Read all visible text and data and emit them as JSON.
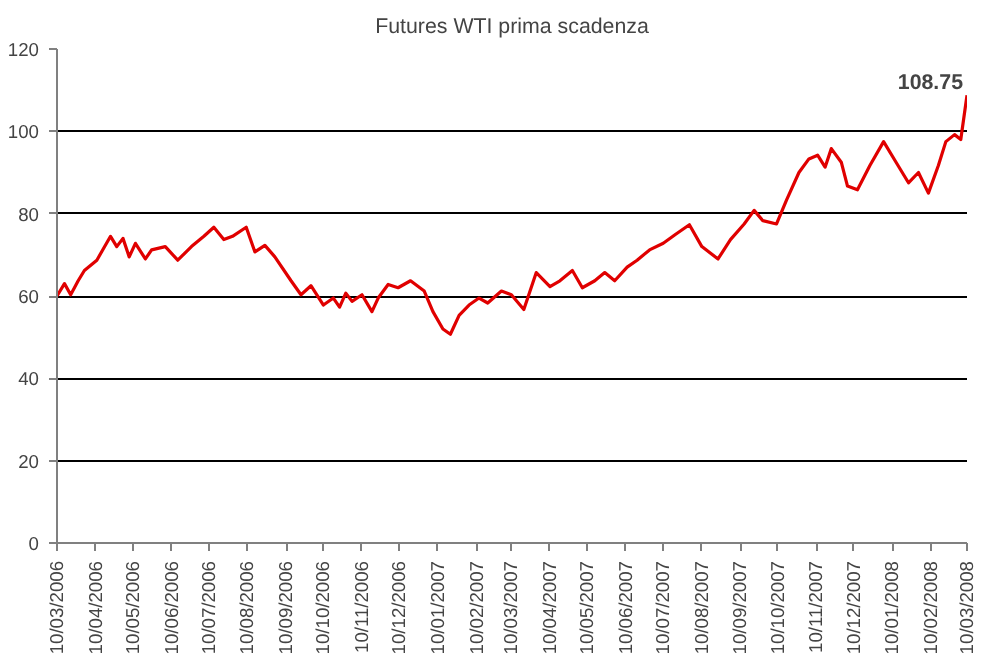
{
  "chart_data": {
    "type": "line",
    "title": "Futures WTI prima scadenza",
    "x": [
      "2006-03-10",
      "2006-03-16",
      "2006-03-21",
      "2006-03-27",
      "2006-04-01",
      "2006-04-11",
      "2006-04-22",
      "2006-04-27",
      "2006-05-02",
      "2006-05-07",
      "2006-05-12",
      "2006-05-20",
      "2006-05-25",
      "2006-06-05",
      "2006-06-15",
      "2006-06-26",
      "2006-07-06",
      "2006-07-14",
      "2006-07-22",
      "2006-07-29",
      "2006-08-09",
      "2006-08-16",
      "2006-08-24",
      "2006-09-01",
      "2006-09-14",
      "2006-09-22",
      "2006-09-30",
      "2006-10-10",
      "2006-10-18",
      "2006-10-23",
      "2006-10-28",
      "2006-11-02",
      "2006-11-10",
      "2006-11-18",
      "2006-11-23",
      "2006-12-01",
      "2006-12-09",
      "2006-12-19",
      "2006-12-30",
      "2007-01-06",
      "2007-01-14",
      "2007-01-20",
      "2007-01-27",
      "2007-02-04",
      "2007-02-12",
      "2007-02-19",
      "2007-03-02",
      "2007-03-10",
      "2007-03-20",
      "2007-03-30",
      "2007-04-10",
      "2007-04-18",
      "2007-04-28",
      "2007-05-06",
      "2007-05-16",
      "2007-05-24",
      "2007-06-01",
      "2007-06-11",
      "2007-06-19",
      "2007-06-29",
      "2007-07-10",
      "2007-07-20",
      "2007-07-31",
      "2007-08-10",
      "2007-08-23",
      "2007-09-02",
      "2007-09-13",
      "2007-09-21",
      "2007-09-28",
      "2007-10-09",
      "2007-10-17",
      "2007-10-27",
      "2007-11-04",
      "2007-11-11",
      "2007-11-17",
      "2007-11-22",
      "2007-11-30",
      "2007-12-05",
      "2007-12-13",
      "2007-12-23",
      "2008-01-03",
      "2008-01-13",
      "2008-01-23",
      "2008-01-31",
      "2008-02-08",
      "2008-02-16",
      "2008-02-22",
      "2008-02-29",
      "2008-03-05",
      "2008-03-10"
    ],
    "series": [
      {
        "color": "#e00000",
        "values": [
          60,
          63,
          60.3,
          63.7,
          66.2,
          68.7,
          74.5,
          72,
          74,
          69.5,
          72.8,
          69,
          71.2,
          72,
          68.7,
          72,
          74.5,
          76.7,
          73.7,
          74.5,
          76.7,
          70.7,
          72.3,
          69.5,
          63.7,
          60.3,
          62.5,
          57.8,
          59.5,
          57.3,
          60.7,
          58.7,
          60.3,
          56.2,
          59.5,
          62.8,
          62,
          63.7,
          61.2,
          56.2,
          52,
          50.7,
          55.3,
          57.8,
          59.5,
          58.3,
          61.2,
          60.3,
          56.7,
          65.7,
          62.3,
          63.7,
          66.2,
          62,
          63.7,
          65.7,
          63.7,
          67,
          68.7,
          71.2,
          72.8,
          75,
          77.3,
          72,
          69,
          73.7,
          77.5,
          80.8,
          78.3,
          77.5,
          83.3,
          90,
          93.3,
          94.2,
          91.3,
          95.8,
          92.5,
          86.7,
          85.8,
          91.7,
          97.5,
          92.5,
          87.5,
          90,
          85,
          91.7,
          97.5,
          99.2,
          98,
          108.75
        ]
      }
    ],
    "xlim": [
      "2006-03-10",
      "2008-03-10"
    ],
    "xticks": [
      {
        "value": "2006-03-10",
        "label": "10/03/2006"
      },
      {
        "value": "2006-04-10",
        "label": "10/04/2006"
      },
      {
        "value": "2006-05-10",
        "label": "10/05/2006"
      },
      {
        "value": "2006-06-10",
        "label": "10/06/2006"
      },
      {
        "value": "2006-07-10",
        "label": "10/07/2006"
      },
      {
        "value": "2006-08-10",
        "label": "10/08/2006"
      },
      {
        "value": "2006-09-10",
        "label": "10/09/2006"
      },
      {
        "value": "2006-10-10",
        "label": "10/10/2006"
      },
      {
        "value": "2006-11-10",
        "label": "10/11/2006"
      },
      {
        "value": "2006-12-10",
        "label": "10/12/2006"
      },
      {
        "value": "2007-01-10",
        "label": "10/01/2007"
      },
      {
        "value": "2007-02-10",
        "label": "10/02/2007"
      },
      {
        "value": "2007-03-10",
        "label": "10/03/2007"
      },
      {
        "value": "2007-04-10",
        "label": "10/04/2007"
      },
      {
        "value": "2007-05-10",
        "label": "10/05/2007"
      },
      {
        "value": "2007-06-10",
        "label": "10/06/2007"
      },
      {
        "value": "2007-07-10",
        "label": "10/07/2007"
      },
      {
        "value": "2007-08-10",
        "label": "10/08/2007"
      },
      {
        "value": "2007-09-10",
        "label": "10/09/2007"
      },
      {
        "value": "2007-10-10",
        "label": "10/10/2007"
      },
      {
        "value": "2007-11-10",
        "label": "10/11/2007"
      },
      {
        "value": "2007-12-10",
        "label": "10/12/2007"
      },
      {
        "value": "2008-01-10",
        "label": "10/01/2008"
      },
      {
        "value": "2008-02-10",
        "label": "10/02/2008"
      },
      {
        "value": "2008-03-10",
        "label": "10/03/2008"
      }
    ],
    "ylim": [
      0,
      120
    ],
    "yticks": [
      0,
      20,
      40,
      60,
      80,
      100,
      120
    ],
    "grid": "y",
    "annotations": [
      {
        "text": "108.75",
        "x": "2008-03-10",
        "y": 108.75
      }
    ]
  }
}
